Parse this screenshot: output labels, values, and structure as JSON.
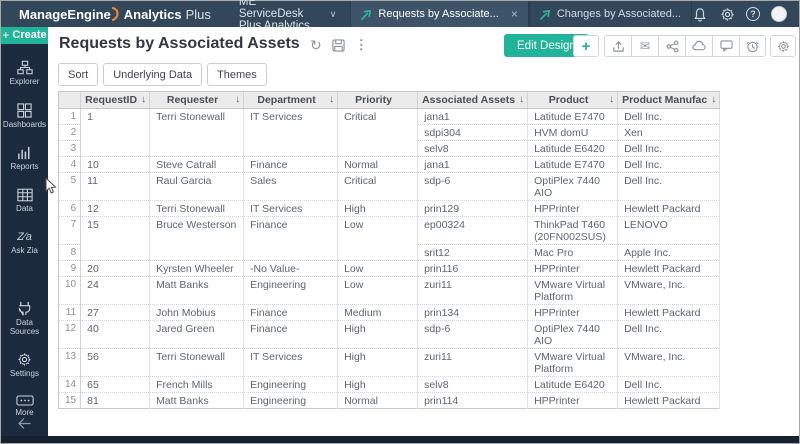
{
  "topbar": {
    "logo": {
      "part1": "ManageEngine",
      "part2": "Analytics",
      "part3": "Plus"
    },
    "workspace": {
      "label": "ME ServiceDesk Plus Analytics"
    },
    "tabs": [
      {
        "label": "Requests by Associate...",
        "active": true
      },
      {
        "label": "Changes by Associated...",
        "active": false
      }
    ]
  },
  "sidebar": {
    "create_label": "Create",
    "items": [
      {
        "label": "Explorer",
        "icon": "sitemap-icon"
      },
      {
        "label": "Dashboards",
        "icon": "grid-icon"
      },
      {
        "label": "Reports",
        "icon": "bar-chart-icon"
      },
      {
        "label": "Data",
        "icon": "table-icon"
      },
      {
        "label": "Ask Zia",
        "icon": "zia-icon"
      },
      {
        "label": "Data Sources",
        "icon": "data-sources-icon"
      },
      {
        "label": "Settings",
        "icon": "gear-icon"
      },
      {
        "label": "More",
        "icon": "ellipsis-icon"
      }
    ]
  },
  "header": {
    "title": "Requests by Associated Assets",
    "edit_design_label": "Edit Design",
    "toolbar_buttons": [
      "Sort",
      "Underlying Data",
      "Themes"
    ]
  },
  "glyphs": {
    "refresh": "↻",
    "kebab": "⋮",
    "sort_desc": "↓",
    "plus": "+",
    "close": "×",
    "chevron_down": "∨",
    "envelope": "✉",
    "zia": "Z⁄a",
    "help": "?"
  },
  "colors": {
    "accent_teal": "#21b498",
    "topbar_bg": "#33475a",
    "sidebar_bg": "#1b2b3d",
    "table_header_bg": "#ebebeb",
    "logo_swoosh_orange": "#f0832f"
  },
  "table": {
    "columns": [
      {
        "label": "RequestID",
        "sortable": true
      },
      {
        "label": "Requester",
        "sortable": true
      },
      {
        "label": "Department",
        "sortable": true
      },
      {
        "label": "Priority",
        "sortable": false
      },
      {
        "label": "Associated Assets",
        "sortable": true
      },
      {
        "label": "Product",
        "sortable": true
      },
      {
        "label": "Product Manufac",
        "sortable": true
      }
    ],
    "rows": [
      {
        "n": "1",
        "cols": [
          {
            "t": "1",
            "rs": 3
          },
          {
            "t": "Terri Stonewall",
            "rs": 3
          },
          {
            "t": "IT Services",
            "rs": 3
          },
          {
            "t": "Critical",
            "rs": 3
          },
          {
            "t": "jana1"
          },
          {
            "t": "Latitude E7470"
          },
          {
            "t": "Dell Inc."
          }
        ]
      },
      {
        "n": "2",
        "cols": [
          {
            "t": "sdpi304"
          },
          {
            "t": "HVM domU"
          },
          {
            "t": "Xen"
          }
        ]
      },
      {
        "n": "3",
        "cols": [
          {
            "t": "selv8"
          },
          {
            "t": "Latitude E6420"
          },
          {
            "t": "Dell Inc."
          }
        ]
      },
      {
        "n": "4",
        "cols": [
          {
            "t": "10"
          },
          {
            "t": "Steve Catrall"
          },
          {
            "t": "Finance"
          },
          {
            "t": "Normal"
          },
          {
            "t": "jana1"
          },
          {
            "t": "Latitude E7470"
          },
          {
            "t": "Dell Inc."
          }
        ]
      },
      {
        "n": "5",
        "cols": [
          {
            "t": "11"
          },
          {
            "t": "Raul Garcia"
          },
          {
            "t": "Sales"
          },
          {
            "t": "Critical"
          },
          {
            "t": "sdp-6"
          },
          {
            "t": "OptiPlex 7440 AIO"
          },
          {
            "t": "Dell Inc."
          }
        ]
      },
      {
        "n": "6",
        "cols": [
          {
            "t": "12"
          },
          {
            "t": "Terri Stonewall"
          },
          {
            "t": "IT Services"
          },
          {
            "t": "High"
          },
          {
            "t": "prin129"
          },
          {
            "t": "HPPrinter"
          },
          {
            "t": "Hewlett Packard"
          }
        ]
      },
      {
        "n": "7",
        "cols": [
          {
            "t": "15",
            "rs": 2
          },
          {
            "t": "Bruce Westerson",
            "rs": 2
          },
          {
            "t": "Finance",
            "rs": 2
          },
          {
            "t": "Low",
            "rs": 2
          },
          {
            "t": "ep00324"
          },
          {
            "t": "ThinkPad T460 (20FN002SUS)"
          },
          {
            "t": "LENOVO"
          }
        ]
      },
      {
        "n": "8",
        "cols": [
          {
            "t": "srit12"
          },
          {
            "t": "Mac Pro"
          },
          {
            "t": "Apple Inc."
          }
        ]
      },
      {
        "n": "9",
        "cols": [
          {
            "t": "20"
          },
          {
            "t": "Kyrsten Wheeler"
          },
          {
            "t": "-No Value-"
          },
          {
            "t": "Low"
          },
          {
            "t": "prin116"
          },
          {
            "t": "HPPrinter"
          },
          {
            "t": "Hewlett Packard"
          }
        ]
      },
      {
        "n": "10",
        "cols": [
          {
            "t": "24"
          },
          {
            "t": "Matt Banks"
          },
          {
            "t": "Engineering"
          },
          {
            "t": "Low"
          },
          {
            "t": "zuri11"
          },
          {
            "t": "VMware Virtual Platform"
          },
          {
            "t": "VMware, Inc."
          }
        ]
      },
      {
        "n": "11",
        "cols": [
          {
            "t": "27"
          },
          {
            "t": "John Mobius"
          },
          {
            "t": "Finance"
          },
          {
            "t": "Medium"
          },
          {
            "t": "prin134"
          },
          {
            "t": "HPPrinter"
          },
          {
            "t": "Hewlett Packard"
          }
        ]
      },
      {
        "n": "12",
        "cols": [
          {
            "t": "40"
          },
          {
            "t": "Jared Green"
          },
          {
            "t": "Finance"
          },
          {
            "t": "High"
          },
          {
            "t": "sdp-6"
          },
          {
            "t": "OptiPlex 7440 AIO"
          },
          {
            "t": "Dell Inc."
          }
        ]
      },
      {
        "n": "13",
        "cols": [
          {
            "t": "56"
          },
          {
            "t": "Terri Stonewall"
          },
          {
            "t": "IT Services"
          },
          {
            "t": "High"
          },
          {
            "t": "zuri11"
          },
          {
            "t": "VMware Virtual Platform"
          },
          {
            "t": "VMware, Inc."
          }
        ]
      },
      {
        "n": "14",
        "cols": [
          {
            "t": "65"
          },
          {
            "t": "French Mills"
          },
          {
            "t": "Engineering"
          },
          {
            "t": "High"
          },
          {
            "t": "selv8"
          },
          {
            "t": "Latitude E6420"
          },
          {
            "t": "Dell Inc."
          }
        ]
      },
      {
        "n": "15",
        "cols": [
          {
            "t": "81"
          },
          {
            "t": "Matt Banks"
          },
          {
            "t": "Engineering"
          },
          {
            "t": "Normal"
          },
          {
            "t": "prin114"
          },
          {
            "t": "HPPrinter"
          },
          {
            "t": "Hewlett Packard"
          }
        ]
      }
    ]
  }
}
